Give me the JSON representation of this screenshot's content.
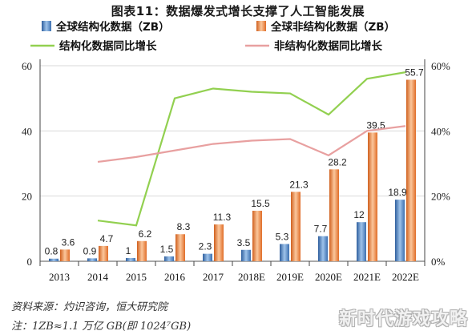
{
  "title": "图表11：数据爆发式增长支撑了人工智能发展",
  "chart_data": {
    "type": "bar",
    "categories": [
      "2013",
      "2014",
      "2015",
      "2016",
      "2017",
      "2018E",
      "2019E",
      "2020E",
      "2021E",
      "2022E"
    ],
    "series": [
      {
        "name": "全球结构化数据（ZB）",
        "kind": "bar",
        "axis": "left",
        "color": "#4f81bd",
        "values": [
          0.8,
          0.9,
          1,
          1.5,
          2.3,
          3.5,
          5.3,
          7.7,
          12,
          18.9
        ],
        "labels": [
          "0.8",
          "0.9",
          "1",
          "1.5",
          "2.3",
          "3.5",
          "5.3",
          "7.7",
          "12",
          "18.9"
        ]
      },
      {
        "name": "全球非结构化数据（ZB）",
        "kind": "bar",
        "axis": "left",
        "color": "#f08c4a",
        "values": [
          3.6,
          4.7,
          6.2,
          8.3,
          11.3,
          15.5,
          21.3,
          28.2,
          39.5,
          55.7
        ],
        "labels": [
          "3.6",
          "4.7",
          "6.2",
          "8.3",
          "11.3",
          "15.5",
          "21.3",
          "28.2",
          "39.5",
          "55.7"
        ]
      },
      {
        "name": "结构化数据同比增长",
        "kind": "line",
        "axis": "right",
        "color": "#92d050",
        "values": [
          null,
          12.5,
          11,
          50,
          53,
          52,
          51.5,
          45,
          56,
          58
        ]
      },
      {
        "name": "非结构化数据同比增长",
        "kind": "line",
        "axis": "right",
        "color": "#e8a0a0",
        "values": [
          null,
          30.5,
          32,
          34,
          36,
          37,
          37.5,
          32.5,
          40,
          41.5
        ]
      }
    ],
    "ylim_left": [
      0,
      60
    ],
    "yticks_left": [
      "0",
      "20",
      "40",
      "60"
    ],
    "ylim_right": [
      0,
      60
    ],
    "yticks_right": [
      "0%",
      "20%",
      "40%",
      "60%"
    ],
    "legend_position": "top"
  },
  "source_line": "资料来源：灼识咨询，恒大研究院",
  "note_line": "注：1ZB≈1.1 万亿 GB(即 1024⁷GB)",
  "watermark": "新时代游戏攻略"
}
